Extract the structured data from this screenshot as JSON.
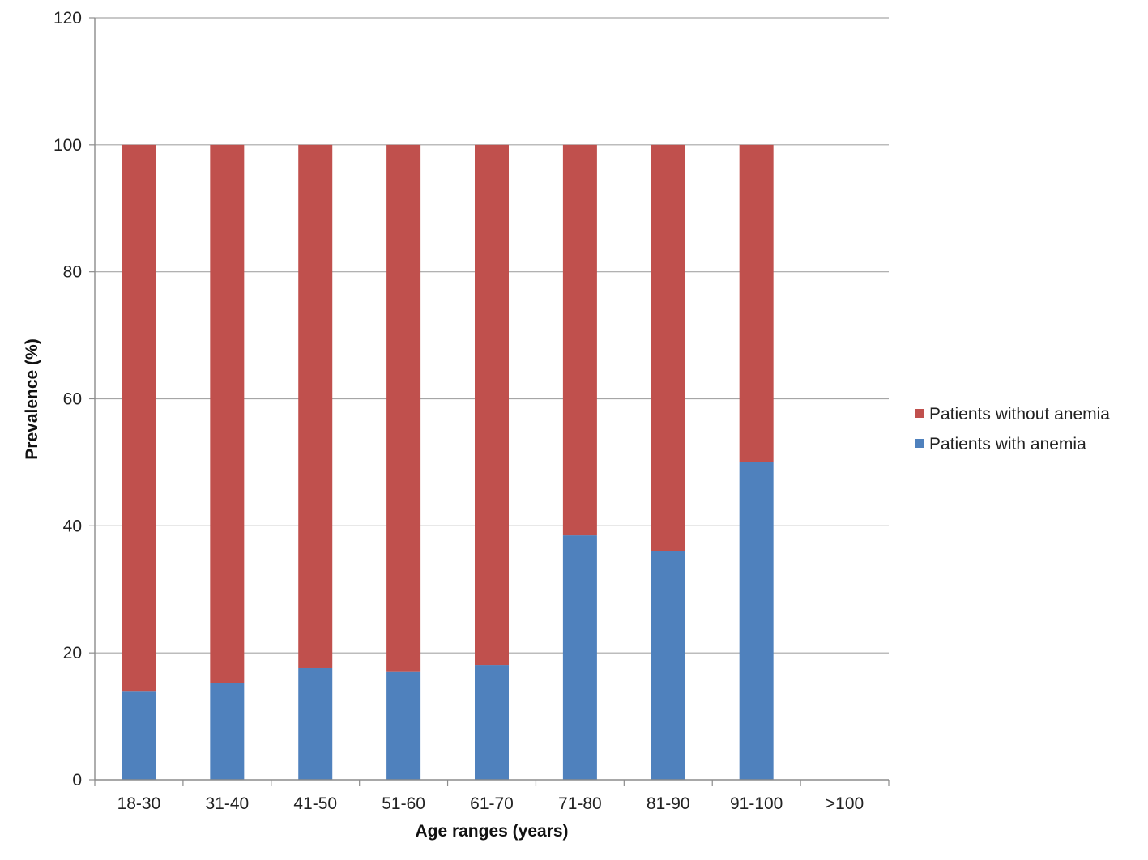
{
  "chart_data": {
    "type": "bar",
    "stacked": true,
    "categories": [
      "18-30",
      "31-40",
      "41-50",
      "51-60",
      "61-70",
      "71-80",
      "81-90",
      "91-100",
      ">100"
    ],
    "series": [
      {
        "name": "Patients with anemia",
        "color": "#4f81bd",
        "values": [
          14,
          15.3,
          17.6,
          17,
          18.1,
          38.5,
          36,
          50,
          0
        ]
      },
      {
        "name": "Patients without anemia",
        "color": "#c0504d",
        "values": [
          86,
          84.7,
          82.4,
          83,
          81.9,
          61.5,
          64,
          50,
          0
        ]
      }
    ],
    "xlabel": "Age ranges (years)",
    "ylabel": "Prevalence (%)",
    "ylim": [
      0,
      120
    ],
    "yticks": [
      "0",
      "20",
      "40",
      "60",
      "80",
      "100",
      "120"
    ],
    "grid": true,
    "legend": {
      "position": "right",
      "entries": [
        "Patients without anemia",
        "Patients with anemia"
      ]
    }
  }
}
